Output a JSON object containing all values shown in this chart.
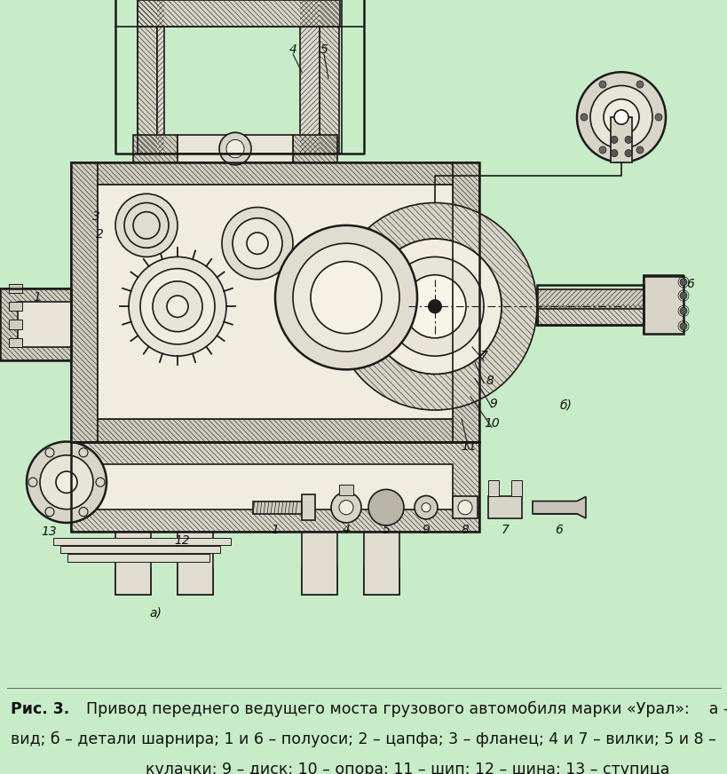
{
  "background_color": "#c8ecc8",
  "fig_width": 8.2,
  "fig_height": 8.72,
  "dpi": 100,
  "caption_bold": "Рис. 3.",
  "caption_rest_line1": "  Привод переднего ведущего моста грузового автомобиля марки «Урал»:    a – общий",
  "caption_line2": "вид; б – детали шарнира; 1 и 6 – полуоси; 2 – цапфа; 3 – фланец; 4 и 7 – вилки; 5 и 8 –",
  "caption_line3": "кулачки; 9 – диск; 10 – опора; 11 – шип; 12 – шина; 13 – ступица",
  "caption_fontsize": 12.5,
  "diagram_color": "#1a1a1a",
  "bg": "#c8ecc8"
}
